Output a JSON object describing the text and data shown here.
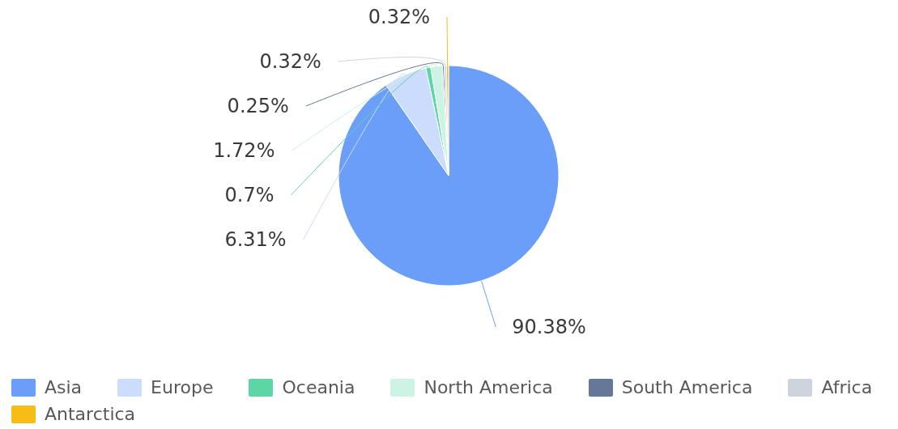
{
  "chart_data": {
    "type": "pie",
    "categories": [
      "Asia",
      "Europe",
      "Oceania",
      "North America",
      "South America",
      "Africa",
      "Antarctica"
    ],
    "values": [
      90.38,
      6.31,
      0.7,
      1.72,
      0.25,
      0.32,
      0.32
    ],
    "colors": [
      "#6a9ef8",
      "#cbdcfc",
      "#5dd6a6",
      "#cdf3e4",
      "#66789a",
      "#ced4de",
      "#f6bd16"
    ],
    "value_labels": [
      "90.38%",
      "6.31%",
      "0.7%",
      "1.72%",
      "0.25%",
      "0.32%",
      "0.32%"
    ],
    "legend": "bottom left"
  }
}
